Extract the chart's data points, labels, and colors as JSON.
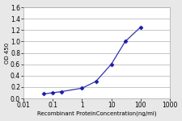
{
  "x": [
    0.05,
    0.1,
    0.2,
    1,
    3,
    10,
    30,
    100
  ],
  "y": [
    0.08,
    0.1,
    0.12,
    0.18,
    0.3,
    0.6,
    1.0,
    1.25
  ],
  "line_color": "#3333aa",
  "marker_color": "#1a1aaa",
  "marker": "D",
  "xlabel": "Recombinant ProteinConcentration(ng/ml)",
  "ylabel": "OD 450",
  "xlim": [
    0.01,
    1000
  ],
  "ylim": [
    0,
    1.6
  ],
  "yticks": [
    0,
    0.2,
    0.4,
    0.6,
    0.8,
    1,
    1.2,
    1.4,
    1.6
  ],
  "xtick_labels": [
    "0.01",
    "0.1",
    "1",
    "10",
    "100",
    "1000"
  ],
  "xtick_vals": [
    0.01,
    0.1,
    1,
    10,
    100,
    1000
  ],
  "bg_color": "#e8e8e8",
  "plot_bg_color": "#ffffff",
  "grid_color": "#b0b0b0",
  "fontsize_tick": 5.5,
  "fontsize_label": 5.0,
  "markersize": 2.5,
  "linewidth": 0.9
}
